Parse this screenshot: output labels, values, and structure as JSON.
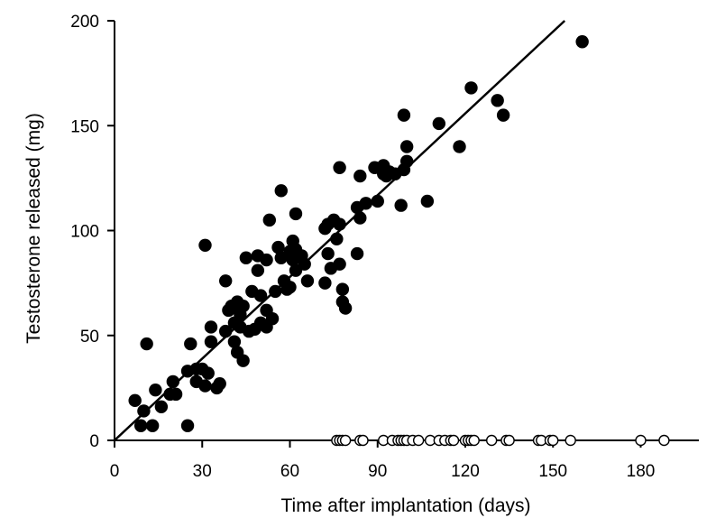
{
  "chart_data": {
    "type": "scatter",
    "title": "",
    "xlabel": "Time after implantation (days)",
    "ylabel": "Testosterone released (mg)",
    "xlim": [
      0,
      200
    ],
    "ylim": [
      0,
      200
    ],
    "xticks": [
      0,
      30,
      60,
      90,
      120,
      150,
      180
    ],
    "yticks": [
      0,
      50,
      100,
      150,
      200
    ],
    "grid": false,
    "legend": "none",
    "series": [
      {
        "name": "Filled circles",
        "marker": "filled-circle",
        "points": [
          [
            7,
            19
          ],
          [
            9,
            7
          ],
          [
            10,
            14
          ],
          [
            11,
            46
          ],
          [
            13,
            7
          ],
          [
            14,
            24
          ],
          [
            16,
            16
          ],
          [
            19,
            22
          ],
          [
            20,
            28
          ],
          [
            21,
            22
          ],
          [
            25,
            7
          ],
          [
            25,
            33
          ],
          [
            26,
            46
          ],
          [
            28,
            28
          ],
          [
            28,
            34
          ],
          [
            30,
            34
          ],
          [
            31,
            26
          ],
          [
            31,
            93
          ],
          [
            32,
            32
          ],
          [
            33,
            54
          ],
          [
            33,
            47
          ],
          [
            35,
            25
          ],
          [
            36,
            27
          ],
          [
            38,
            52
          ],
          [
            38,
            76
          ],
          [
            39,
            62
          ],
          [
            40,
            64
          ],
          [
            41,
            47
          ],
          [
            41,
            56
          ],
          [
            42,
            42
          ],
          [
            42,
            66
          ],
          [
            43,
            54
          ],
          [
            43,
            60
          ],
          [
            44,
            38
          ],
          [
            44,
            64
          ],
          [
            45,
            87
          ],
          [
            46,
            52
          ],
          [
            47,
            71
          ],
          [
            48,
            53
          ],
          [
            49,
            88
          ],
          [
            49,
            81
          ],
          [
            50,
            56
          ],
          [
            50,
            69
          ],
          [
            52,
            54
          ],
          [
            52,
            62
          ],
          [
            52,
            86
          ],
          [
            53,
            105
          ],
          [
            54,
            58
          ],
          [
            55,
            71
          ],
          [
            56,
            92
          ],
          [
            57,
            119
          ],
          [
            57,
            87
          ],
          [
            58,
            76
          ],
          [
            59,
            72
          ],
          [
            60,
            73
          ],
          [
            60,
            90
          ],
          [
            61,
            86
          ],
          [
            61,
            95
          ],
          [
            62,
            81
          ],
          [
            62,
            91
          ],
          [
            62,
            108
          ],
          [
            64,
            88
          ],
          [
            65,
            84
          ],
          [
            66,
            76
          ],
          [
            72,
            75
          ],
          [
            72,
            101
          ],
          [
            73,
            89
          ],
          [
            73,
            103
          ],
          [
            74,
            82
          ],
          [
            75,
            105
          ],
          [
            76,
            96
          ],
          [
            77,
            130
          ],
          [
            77,
            103
          ],
          [
            77,
            84
          ],
          [
            78,
            66
          ],
          [
            78,
            72
          ],
          [
            79,
            63
          ],
          [
            83,
            89
          ],
          [
            83,
            111
          ],
          [
            84,
            106
          ],
          [
            84,
            126
          ],
          [
            86,
            113
          ],
          [
            89,
            130
          ],
          [
            90,
            114
          ],
          [
            92,
            127
          ],
          [
            92,
            131
          ],
          [
            93,
            126
          ],
          [
            94,
            128
          ],
          [
            96,
            127
          ],
          [
            98,
            112
          ],
          [
            99,
            155
          ],
          [
            99,
            129
          ],
          [
            100,
            133
          ],
          [
            100,
            140
          ],
          [
            107,
            114
          ],
          [
            111,
            151
          ],
          [
            118,
            140
          ],
          [
            122,
            168
          ],
          [
            131,
            162
          ],
          [
            133,
            155
          ],
          [
            160,
            190
          ]
        ]
      },
      {
        "name": "Open circles",
        "marker": "open-circle",
        "points": [
          [
            76,
            0
          ],
          [
            77,
            0
          ],
          [
            78,
            0
          ],
          [
            79,
            0
          ],
          [
            84,
            0
          ],
          [
            85,
            0
          ],
          [
            92,
            0
          ],
          [
            95,
            0
          ],
          [
            97,
            0
          ],
          [
            98,
            0
          ],
          [
            99,
            0
          ],
          [
            100,
            0
          ],
          [
            102,
            0
          ],
          [
            104,
            0
          ],
          [
            108,
            0
          ],
          [
            111,
            0
          ],
          [
            113,
            0
          ],
          [
            115,
            0
          ],
          [
            116,
            0
          ],
          [
            120,
            0
          ],
          [
            121,
            0
          ],
          [
            122,
            0
          ],
          [
            123,
            0
          ],
          [
            129,
            0
          ],
          [
            134,
            0
          ],
          [
            135,
            0
          ],
          [
            145,
            0
          ],
          [
            146,
            0
          ],
          [
            149,
            0
          ],
          [
            150,
            0
          ],
          [
            156,
            0
          ],
          [
            180,
            0
          ],
          [
            188,
            0
          ]
        ]
      }
    ],
    "regression_line": {
      "x": [
        0,
        154
      ],
      "y": [
        0,
        200
      ]
    }
  }
}
